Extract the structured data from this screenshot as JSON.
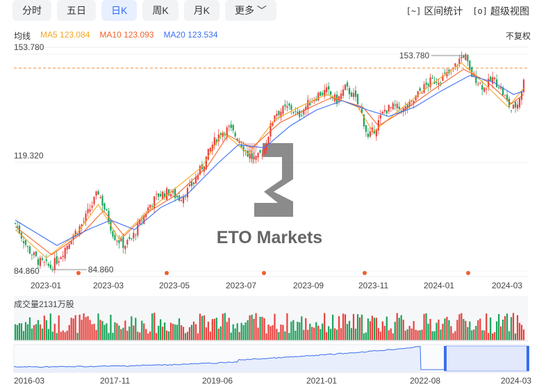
{
  "tabs": [
    {
      "label": "分时",
      "active": false
    },
    {
      "label": "五日",
      "active": false
    },
    {
      "label": "日K",
      "active": true
    },
    {
      "label": "周K",
      "active": false
    },
    {
      "label": "月K",
      "active": false
    },
    {
      "label": "更多",
      "active": false
    }
  ],
  "tools": {
    "range_stats": "区间统计",
    "super_view": "超级视图"
  },
  "ma_legend": {
    "title": "均线",
    "ma5": "MA5 123.084",
    "ma10": "MA10 123.093",
    "ma20": "MA20 123.534"
  },
  "fuquan": "不复权",
  "volume_label": "成交量2131万股",
  "watermark": "ETO Markets",
  "colors": {
    "up": "#e8413c",
    "down": "#1aa35a",
    "ma5": "#f5a623",
    "ma10": "#f0622d",
    "ma20": "#3b6ff0",
    "accent": "#2f6bff",
    "dash": "#f08c3a"
  },
  "chart_data": {
    "type": "candlestick",
    "y_ticks": [
      "153.780",
      "119.320",
      "84.860"
    ],
    "ylim": [
      84.86,
      153.78
    ],
    "max_marker": "153.780",
    "min_marker": "84.860",
    "x_tick_labels": [
      "2023-01",
      "2023-03",
      "2023-05",
      "2023-07",
      "2023-09",
      "2023-11",
      "2024-01",
      "2024-03"
    ],
    "close_series_approx": [
      [
        0,
        100
      ],
      [
        12,
        92
      ],
      [
        22,
        88
      ],
      [
        34,
        86
      ],
      [
        42,
        89
      ],
      [
        55,
        96
      ],
      [
        65,
        100
      ],
      [
        74,
        106
      ],
      [
        80,
        110
      ],
      [
        88,
        103
      ],
      [
        95,
        96
      ],
      [
        105,
        93
      ],
      [
        112,
        95
      ],
      [
        120,
        100
      ],
      [
        130,
        106
      ],
      [
        138,
        109
      ],
      [
        148,
        110
      ],
      [
        158,
        108
      ],
      [
        168,
        111
      ],
      [
        180,
        118
      ],
      [
        190,
        125
      ],
      [
        198,
        129
      ],
      [
        206,
        130
      ],
      [
        215,
        127
      ],
      [
        224,
        122
      ],
      [
        232,
        120
      ],
      [
        240,
        124
      ],
      [
        250,
        135
      ],
      [
        258,
        136
      ],
      [
        265,
        137
      ],
      [
        272,
        134
      ],
      [
        282,
        138
      ],
      [
        292,
        141
      ],
      [
        300,
        142
      ],
      [
        310,
        139
      ],
      [
        318,
        143
      ],
      [
        325,
        141
      ],
      [
        333,
        136
      ],
      [
        340,
        127
      ],
      [
        348,
        131
      ],
      [
        356,
        136
      ],
      [
        365,
        137
      ],
      [
        374,
        136
      ],
      [
        382,
        138
      ],
      [
        390,
        142
      ],
      [
        400,
        145
      ],
      [
        410,
        146
      ],
      [
        420,
        148
      ],
      [
        428,
        152
      ],
      [
        433,
        154
      ],
      [
        438,
        148
      ],
      [
        444,
        146
      ],
      [
        452,
        143
      ],
      [
        460,
        146
      ],
      [
        466,
        144
      ],
      [
        472,
        140
      ],
      [
        478,
        136
      ],
      [
        484,
        138
      ],
      [
        490,
        145
      ]
    ],
    "ma_series_approx": {
      "MA5": [
        [
          0,
          98
        ],
        [
          30,
          89
        ],
        [
          60,
          97
        ],
        [
          80,
          106
        ],
        [
          100,
          95
        ],
        [
          125,
          103
        ],
        [
          150,
          110
        ],
        [
          180,
          118
        ],
        [
          200,
          129
        ],
        [
          225,
          122
        ],
        [
          250,
          133
        ],
        [
          280,
          138
        ],
        [
          300,
          141
        ],
        [
          330,
          137
        ],
        [
          345,
          129
        ],
        [
          370,
          136
        ],
        [
          400,
          144
        ],
        [
          430,
          151
        ],
        [
          450,
          145
        ],
        [
          475,
          137
        ],
        [
          490,
          143
        ]
      ],
      "MA10": [
        [
          0,
          99
        ],
        [
          35,
          90
        ],
        [
          65,
          97
        ],
        [
          85,
          104
        ],
        [
          105,
          96
        ],
        [
          130,
          104
        ],
        [
          155,
          109
        ],
        [
          185,
          118
        ],
        [
          205,
          128
        ],
        [
          228,
          124
        ],
        [
          255,
          132
        ],
        [
          285,
          137
        ],
        [
          305,
          140
        ],
        [
          335,
          137
        ],
        [
          350,
          131
        ],
        [
          375,
          136
        ],
        [
          405,
          143
        ],
        [
          432,
          149
        ],
        [
          455,
          145
        ],
        [
          478,
          138
        ],
        [
          490,
          141
        ]
      ],
      "MA20": [
        [
          0,
          101
        ],
        [
          40,
          93
        ],
        [
          70,
          98
        ],
        [
          92,
          101
        ],
        [
          115,
          98
        ],
        [
          140,
          105
        ],
        [
          165,
          109
        ],
        [
          195,
          119
        ],
        [
          215,
          125
        ],
        [
          240,
          124
        ],
        [
          265,
          131
        ],
        [
          290,
          136
        ],
        [
          315,
          139
        ],
        [
          340,
          136
        ],
        [
          360,
          134
        ],
        [
          385,
          137
        ],
        [
          410,
          142
        ],
        [
          438,
          147
        ],
        [
          460,
          145
        ],
        [
          480,
          141
        ],
        [
          490,
          142
        ]
      ]
    },
    "overview_labels": [
      "2016-03",
      "2017-11",
      "2019-06",
      "2021-01",
      "2022-08",
      "2024-03"
    ]
  }
}
